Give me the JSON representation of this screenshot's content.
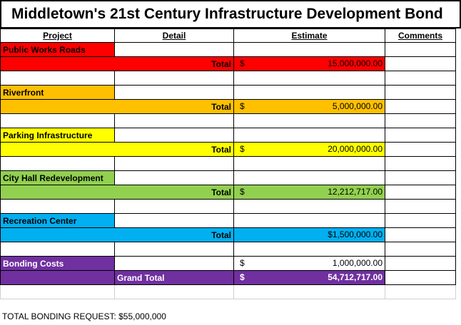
{
  "title": "Middletown's 21st Century Infrastructure Development Bond",
  "headers": {
    "project": "Project",
    "detail": "Detail",
    "estimate": "Estimate",
    "comments": "Comments"
  },
  "sections": [
    {
      "name": "Public Works Roads",
      "total_label": "Total",
      "symbol": "$",
      "amount": "15,000,000.00",
      "color": "#ff0000"
    },
    {
      "name": "Riverfront",
      "total_label": "Total",
      "symbol": "$",
      "amount": "5,000,000.00",
      "color": "#ffc000"
    },
    {
      "name": "Parking Infrastructure",
      "total_label": "Total",
      "symbol": "$",
      "amount": "20,000,000.00",
      "color": "#ffff00"
    },
    {
      "name": "City Hall Redevelopment",
      "total_label": "Total",
      "symbol": "$",
      "amount": "12,212,717.00",
      "color": "#92d050"
    },
    {
      "name": "Recreation Center",
      "total_label": "Total",
      "amount": "$1,500,000.00",
      "color": "#00b0f0"
    }
  ],
  "bonding": {
    "name": "Bonding Costs",
    "symbol": "$",
    "amount": "1,000,000.00",
    "color": "#7030a0"
  },
  "grand_total": {
    "label": "Grand Total",
    "symbol": "$",
    "amount": "54,712,717.00"
  },
  "footer": "TOTAL BONDING REQUEST: $55,000,000"
}
